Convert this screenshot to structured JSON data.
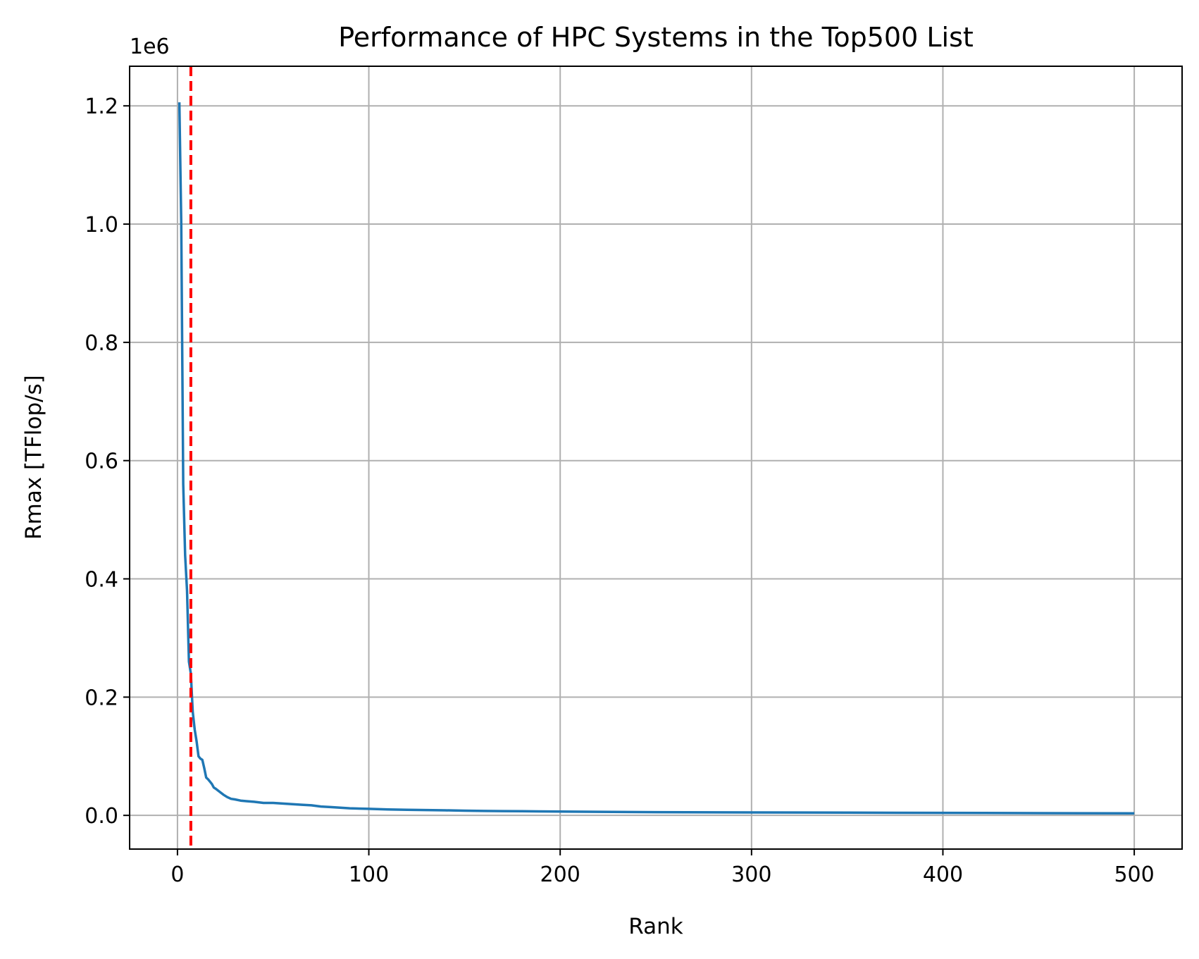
{
  "chart_data": {
    "type": "line",
    "title": "Performance of HPC Systems in the Top500 List",
    "xlabel": "Rank",
    "ylabel": "Rmax [TFlop/s]",
    "y_offset_label": "1e6",
    "xlim": [
      -25,
      525
    ],
    "ylim": [
      -57000,
      1267000
    ],
    "xticks": [
      0,
      100,
      200,
      300,
      400,
      500
    ],
    "xtick_labels": [
      "0",
      "100",
      "200",
      "300",
      "400",
      "500"
    ],
    "yticks": [
      0,
      200000,
      400000,
      600000,
      800000,
      1000000,
      1200000
    ],
    "ytick_labels": [
      "0.0",
      "0.2",
      "0.4",
      "0.6",
      "0.8",
      "1.0",
      "1.2"
    ],
    "grid": true,
    "series": [
      {
        "color": "#1f77b4",
        "x": [
          1,
          2,
          3,
          4,
          5,
          6,
          7,
          8,
          9,
          10,
          11,
          12,
          13,
          14,
          15,
          16,
          17,
          18,
          19,
          20,
          22,
          24,
          26,
          28,
          30,
          33,
          36,
          40,
          45,
          50,
          55,
          60,
          65,
          70,
          75,
          80,
          85,
          90,
          100,
          110,
          120,
          130,
          140,
          150,
          160,
          170,
          180,
          200,
          220,
          250,
          300,
          350,
          400,
          450,
          500
        ],
        "y": [
          1206000,
          1000000,
          560000,
          440000,
          380000,
          260000,
          240000,
          175000,
          145000,
          125000,
          100000,
          96000,
          94000,
          80000,
          64000,
          61000,
          57000,
          53000,
          47000,
          45000,
          40000,
          35000,
          31000,
          28000,
          27000,
          25000,
          24000,
          23000,
          21000,
          21000,
          20000,
          19000,
          18000,
          17000,
          15000,
          14000,
          13000,
          12000,
          11000,
          10000,
          9500,
          9000,
          8500,
          8000,
          7500,
          7200,
          7000,
          6500,
          6000,
          5500,
          5000,
          4600,
          4200,
          3800,
          3500
        ]
      }
    ],
    "reference_line": {
      "x": 7,
      "color": "#ff0000",
      "style": "dashed"
    }
  }
}
